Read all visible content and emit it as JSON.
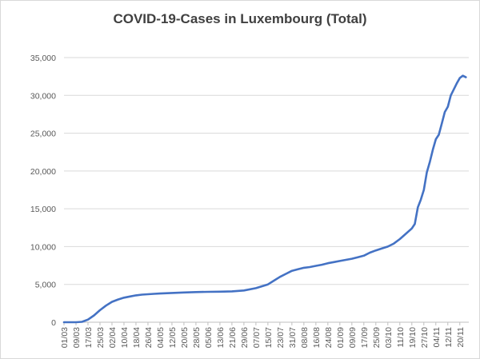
{
  "chart_data": {
    "type": "line",
    "title": "COVID-19-Cases in Luxembourg (Total)",
    "xlabel": "",
    "ylabel": "",
    "ylim": [
      0,
      35000
    ],
    "yticks": [
      0,
      5000,
      10000,
      15000,
      20000,
      25000,
      30000,
      35000
    ],
    "ytick_labels": [
      "0",
      "5,000",
      "10,000",
      "15,000",
      "20,000",
      "25,000",
      "30,000",
      "35,000"
    ],
    "xtick_labels": [
      "01/03",
      "09/03",
      "17/03",
      "25/03",
      "02/04",
      "10/04",
      "18/04",
      "26/04",
      "04/05",
      "12/05",
      "20/05",
      "28/05",
      "05/06",
      "13/06",
      "21/06",
      "29/06",
      "07/07",
      "15/07",
      "23/07",
      "31/07",
      "08/08",
      "16/08",
      "24/08",
      "01/09",
      "09/09",
      "17/09",
      "25/09",
      "03/10",
      "11/10",
      "19/10",
      "27/10",
      "04/11",
      "12/11",
      "20/11"
    ],
    "grid": true,
    "legend": "none",
    "line_color": "#4472c4",
    "series": [
      {
        "x": [
          "01/03",
          "09/03",
          "13/03",
          "17/03",
          "21/03",
          "25/03",
          "29/03",
          "02/04",
          "06/04",
          "10/04",
          "14/04",
          "18/04",
          "22/04",
          "26/04",
          "30/04",
          "04/05",
          "12/05",
          "20/05",
          "28/05",
          "05/06",
          "13/06",
          "21/06",
          "29/06",
          "07/07",
          "15/07",
          "19/07",
          "23/07",
          "27/07",
          "31/07",
          "04/08",
          "08/08",
          "12/08",
          "16/08",
          "20/08",
          "24/08",
          "28/08",
          "01/09",
          "05/09",
          "09/09",
          "13/09",
          "17/09",
          "21/09",
          "25/09",
          "29/09",
          "03/10",
          "07/10",
          "11/10",
          "15/10",
          "19/10",
          "21/10",
          "23/10",
          "25/10",
          "27/10",
          "29/10",
          "31/10",
          "02/11",
          "04/11",
          "06/11",
          "08/11",
          "10/11",
          "12/11",
          "14/11",
          "16/11",
          "18/11",
          "20/11",
          "22/11",
          "24/11"
        ],
        "values": [
          0,
          5,
          50,
          350,
          900,
          1600,
          2200,
          2700,
          3000,
          3250,
          3400,
          3550,
          3650,
          3700,
          3750,
          3800,
          3870,
          3930,
          3990,
          4020,
          4040,
          4080,
          4200,
          4500,
          5000,
          5500,
          6000,
          6400,
          6800,
          7000,
          7200,
          7300,
          7450,
          7600,
          7800,
          7950,
          8100,
          8250,
          8400,
          8600,
          8800,
          9200,
          9500,
          9750,
          10000,
          10400,
          11000,
          11700,
          12400,
          13000,
          15200,
          16200,
          17500,
          19800,
          21200,
          22800,
          24200,
          24800,
          26300,
          27800,
          28500,
          30000,
          30800,
          31600,
          32300,
          32600,
          32400
        ]
      }
    ]
  }
}
